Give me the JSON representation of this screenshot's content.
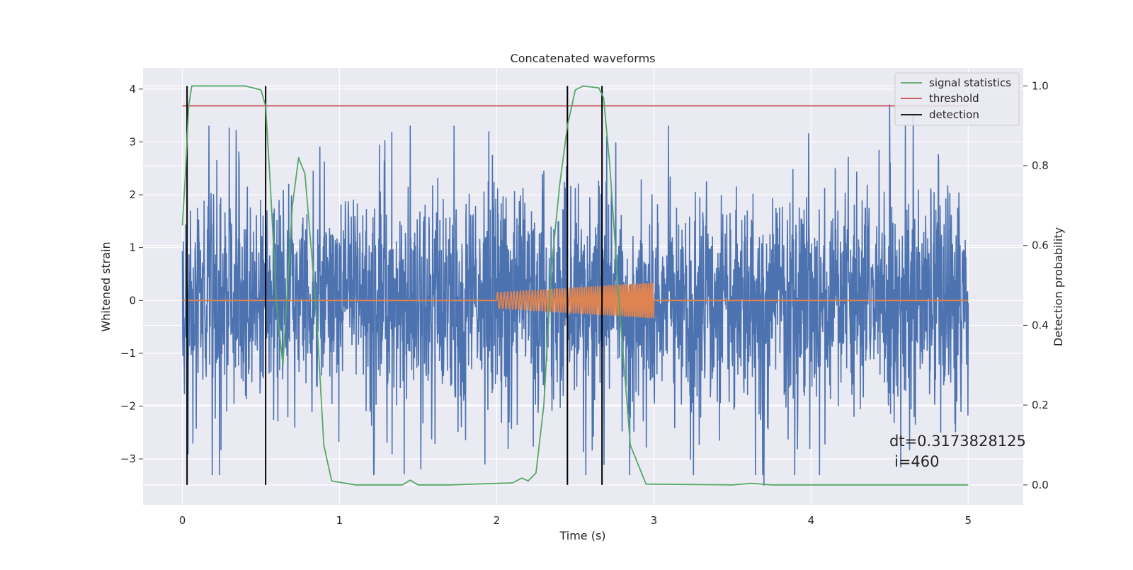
{
  "chart_data": {
    "type": "line",
    "title": "Concatenated waveforms",
    "xlabel": "Time (s)",
    "ylabel": "Whitened strain",
    "ylabel_right": "Detection probability",
    "xlim": [
      -0.25,
      5.35
    ],
    "ylim": [
      -3.87,
      4.4
    ],
    "ylim_right": [
      -0.05,
      1.045
    ],
    "x_ticks": [
      0,
      1,
      2,
      3,
      4,
      5
    ],
    "x_tick_labels": [
      "0",
      "1",
      "2",
      "3",
      "4",
      "5"
    ],
    "y_ticks": [
      4,
      3,
      2,
      1,
      0,
      -1,
      -2,
      -3
    ],
    "y_tick_labels": [
      "4",
      "3",
      "2",
      "1",
      "0",
      "−1",
      "−2",
      "−3"
    ],
    "y_right_ticks": [
      1.0,
      0.8,
      0.6,
      0.4,
      0.2,
      0.0
    ],
    "y_right_tick_labels": [
      "1.0",
      "0.8",
      "0.6",
      "0.4",
      "0.2",
      "0.0"
    ],
    "grid": true,
    "legend_position": "top-right",
    "legend": [
      {
        "label": "signal statistics",
        "color": "#55a868"
      },
      {
        "label": "threshold",
        "color": "#c44e52"
      },
      {
        "label": "detection",
        "color": "#000000"
      }
    ],
    "series": [
      {
        "role": "whitened strain noise",
        "axis": "left",
        "color": "#4c72b0",
        "x_range": [
          0,
          5
        ],
        "typical_range": [
          -1.5,
          1.5
        ],
        "extremes": [
          [
            0.19,
            -3.3
          ],
          [
            1.45,
            3.3
          ],
          [
            3.7,
            -3.5
          ],
          [
            4.5,
            3.7
          ],
          [
            4.65,
            3.5
          ]
        ]
      },
      {
        "role": "injected waveform",
        "axis": "left",
        "color": "#dd8452",
        "x": [
          0,
          2.0,
          2.5,
          3.0,
          5
        ],
        "amplitude": [
          0,
          0.15,
          0.24,
          0.33,
          0
        ]
      },
      {
        "name": "signal statistics",
        "axis": "right",
        "color": "#55a868",
        "x": [
          0.0,
          0.02,
          0.04,
          0.06,
          0.1,
          0.2,
          0.4,
          0.5,
          0.53,
          0.56,
          0.6,
          0.64,
          0.7,
          0.74,
          0.78,
          0.85,
          0.9,
          0.95,
          1.1,
          1.4,
          1.45,
          1.5,
          1.7,
          2.1,
          2.16,
          2.2,
          2.25,
          2.3,
          2.35,
          2.4,
          2.45,
          2.5,
          2.55,
          2.65,
          2.68,
          2.72,
          2.78,
          2.85,
          2.95,
          3.5,
          3.62,
          3.75,
          4.5,
          5.0
        ],
        "values": [
          0.65,
          0.78,
          0.95,
          1.0,
          1.0,
          1.0,
          1.0,
          0.99,
          0.95,
          0.75,
          0.45,
          0.3,
          0.7,
          0.82,
          0.78,
          0.45,
          0.1,
          0.01,
          0.0,
          0.0,
          0.012,
          0.0,
          0.0,
          0.005,
          0.017,
          0.01,
          0.03,
          0.2,
          0.55,
          0.75,
          0.9,
          0.99,
          1.0,
          0.995,
          0.97,
          0.8,
          0.45,
          0.1,
          0.002,
          0.0,
          0.004,
          0.0,
          0.0,
          0.0
        ]
      },
      {
        "name": "threshold",
        "axis": "right",
        "color": "#c44e52",
        "x": [
          0,
          5
        ],
        "values": [
          0.95,
          0.95
        ]
      }
    ],
    "detections": [
      0.03,
      0.53,
      2.45,
      2.67
    ],
    "annotation": [
      "dt=0.3173828125",
      "i=460"
    ]
  }
}
